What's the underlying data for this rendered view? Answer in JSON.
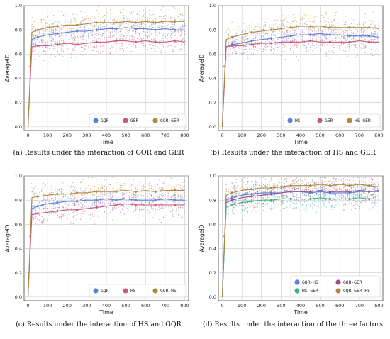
{
  "palette": {
    "GQR": "#5b7fe0",
    "GER": "#c8587e",
    "HS": "#c8587e",
    "HS-GER": "#b3863f",
    "GQR-GER": "#b3863f",
    "GQR-HS": "#b3863f",
    "GQR-HS-a": "#5b7fe0",
    "GQR-GER-b": "#9e4d84",
    "HS-GER-c": "#3fb28a",
    "GQR-GER-HS": "#b3863f"
  },
  "chart_data": [
    {
      "type": "line",
      "caption": "(a) Results under the interaction of GQR and GER",
      "xlabel": "Time",
      "ylabel": "AverageID",
      "xlim": [
        -20,
        820
      ],
      "ylim": [
        -0.03,
        1.0
      ],
      "xticks": [
        0,
        100,
        200,
        300,
        400,
        500,
        600,
        700,
        800
      ],
      "yticks": [
        0.0,
        0.2,
        0.4,
        0.6,
        0.8,
        1.0
      ],
      "grid": true,
      "legend_position": "bottom-right",
      "legend_columns": 3,
      "x": [
        0,
        20,
        50,
        100,
        150,
        200,
        250,
        300,
        350,
        400,
        450,
        500,
        550,
        600,
        650,
        700,
        750,
        800
      ],
      "series": [
        {
          "name": "GQR",
          "color": "#5b7fe0",
          "values": [
            0.0,
            0.72,
            0.74,
            0.76,
            0.77,
            0.78,
            0.79,
            0.79,
            0.8,
            0.81,
            0.81,
            0.82,
            0.81,
            0.81,
            0.8,
            0.81,
            0.8,
            0.8
          ]
        },
        {
          "name": "GER",
          "color": "#c8587e",
          "values": [
            0.0,
            0.66,
            0.67,
            0.67,
            0.68,
            0.69,
            0.68,
            0.69,
            0.7,
            0.7,
            0.71,
            0.71,
            0.7,
            0.71,
            0.7,
            0.7,
            0.71,
            0.7
          ]
        },
        {
          "name": "GQR-GER",
          "color": "#b3863f",
          "values": [
            0.0,
            0.78,
            0.8,
            0.82,
            0.83,
            0.84,
            0.84,
            0.85,
            0.86,
            0.86,
            0.86,
            0.87,
            0.86,
            0.87,
            0.86,
            0.87,
            0.87,
            0.87
          ]
        }
      ]
    },
    {
      "type": "line",
      "caption": "(b) Results under the interaction of HS and GER",
      "xlabel": "Time",
      "ylabel": "AverageID",
      "xlim": [
        -20,
        820
      ],
      "ylim": [
        -0.03,
        1.0
      ],
      "xticks": [
        0,
        100,
        200,
        300,
        400,
        500,
        600,
        700,
        800
      ],
      "yticks": [
        0.0,
        0.2,
        0.4,
        0.6,
        0.8,
        1.0
      ],
      "grid": true,
      "legend_position": "bottom-right",
      "legend_columns": 3,
      "x": [
        0,
        20,
        50,
        100,
        150,
        200,
        250,
        300,
        350,
        400,
        450,
        500,
        550,
        600,
        650,
        700,
        750,
        800
      ],
      "series": [
        {
          "name": "HS",
          "color": "#5b7fe0",
          "values": [
            0.0,
            0.66,
            0.68,
            0.69,
            0.71,
            0.72,
            0.73,
            0.74,
            0.75,
            0.76,
            0.76,
            0.77,
            0.76,
            0.76,
            0.75,
            0.75,
            0.75,
            0.74
          ]
        },
        {
          "name": "GER",
          "color": "#c8587e",
          "values": [
            0.0,
            0.66,
            0.67,
            0.67,
            0.68,
            0.69,
            0.69,
            0.7,
            0.7,
            0.7,
            0.71,
            0.7,
            0.7,
            0.7,
            0.7,
            0.71,
            0.7,
            0.7
          ]
        },
        {
          "name": "HS-GER",
          "color": "#b3863f",
          "values": [
            0.0,
            0.72,
            0.74,
            0.76,
            0.78,
            0.79,
            0.8,
            0.81,
            0.82,
            0.83,
            0.83,
            0.83,
            0.82,
            0.82,
            0.82,
            0.82,
            0.82,
            0.81
          ]
        }
      ]
    },
    {
      "type": "line",
      "caption": "(c) Results under the interaction of HS and GQR",
      "xlabel": "Time",
      "ylabel": "AverageID",
      "xlim": [
        -20,
        820
      ],
      "ylim": [
        -0.03,
        1.0
      ],
      "xticks": [
        0,
        100,
        200,
        300,
        400,
        500,
        600,
        700,
        800
      ],
      "yticks": [
        0.0,
        0.2,
        0.4,
        0.6,
        0.8,
        1.0
      ],
      "grid": true,
      "legend_position": "bottom-right",
      "legend_columns": 3,
      "x": [
        0,
        20,
        50,
        100,
        150,
        200,
        250,
        300,
        350,
        400,
        450,
        500,
        550,
        600,
        650,
        700,
        750,
        800
      ],
      "series": [
        {
          "name": "GQR",
          "color": "#5b7fe0",
          "values": [
            0.0,
            0.73,
            0.75,
            0.77,
            0.78,
            0.79,
            0.79,
            0.8,
            0.8,
            0.81,
            0.8,
            0.81,
            0.8,
            0.8,
            0.8,
            0.81,
            0.8,
            0.8
          ]
        },
        {
          "name": "HS",
          "color": "#c8587e",
          "values": [
            0.0,
            0.68,
            0.69,
            0.7,
            0.71,
            0.72,
            0.72,
            0.73,
            0.74,
            0.75,
            0.76,
            0.77,
            0.76,
            0.76,
            0.76,
            0.76,
            0.76,
            0.76
          ]
        },
        {
          "name": "GQR-HS",
          "color": "#b3863f",
          "values": [
            0.0,
            0.82,
            0.83,
            0.84,
            0.85,
            0.85,
            0.86,
            0.86,
            0.87,
            0.87,
            0.87,
            0.88,
            0.87,
            0.88,
            0.87,
            0.88,
            0.88,
            0.88
          ]
        }
      ]
    },
    {
      "type": "line",
      "caption": "(d) Results under the interaction of the three factors",
      "xlabel": "Time",
      "ylabel": "AverageID",
      "xlim": [
        -20,
        820
      ],
      "ylim": [
        -0.03,
        1.0
      ],
      "xticks": [
        0,
        100,
        200,
        300,
        400,
        500,
        600,
        700,
        800
      ],
      "yticks": [
        0.0,
        0.2,
        0.4,
        0.6,
        0.8,
        1.0
      ],
      "grid": true,
      "legend_position": "bottom-right",
      "legend_columns": 2,
      "x": [
        0,
        20,
        50,
        100,
        150,
        200,
        250,
        300,
        350,
        400,
        450,
        500,
        550,
        600,
        650,
        700,
        750,
        800
      ],
      "series": [
        {
          "name": "GQR-HS",
          "color": "#5b7fe0",
          "values": [
            0.0,
            0.8,
            0.82,
            0.84,
            0.85,
            0.86,
            0.86,
            0.86,
            0.87,
            0.87,
            0.86,
            0.87,
            0.86,
            0.86,
            0.86,
            0.87,
            0.87,
            0.87
          ]
        },
        {
          "name": "GQR-GER",
          "color": "#9e4d84",
          "values": [
            0.0,
            0.78,
            0.8,
            0.82,
            0.83,
            0.84,
            0.85,
            0.86,
            0.87,
            0.87,
            0.87,
            0.88,
            0.87,
            0.87,
            0.87,
            0.88,
            0.87,
            0.88
          ]
        },
        {
          "name": "HS-GER",
          "color": "#3fb28a",
          "values": [
            0.0,
            0.74,
            0.76,
            0.78,
            0.79,
            0.8,
            0.8,
            0.81,
            0.81,
            0.81,
            0.81,
            0.82,
            0.81,
            0.81,
            0.81,
            0.82,
            0.81,
            0.81
          ]
        },
        {
          "name": "GQR-GER-HS",
          "color": "#b3863f",
          "values": [
            0.0,
            0.84,
            0.86,
            0.88,
            0.89,
            0.9,
            0.9,
            0.91,
            0.92,
            0.92,
            0.92,
            0.93,
            0.92,
            0.93,
            0.92,
            0.93,
            0.92,
            0.91
          ]
        }
      ]
    }
  ]
}
